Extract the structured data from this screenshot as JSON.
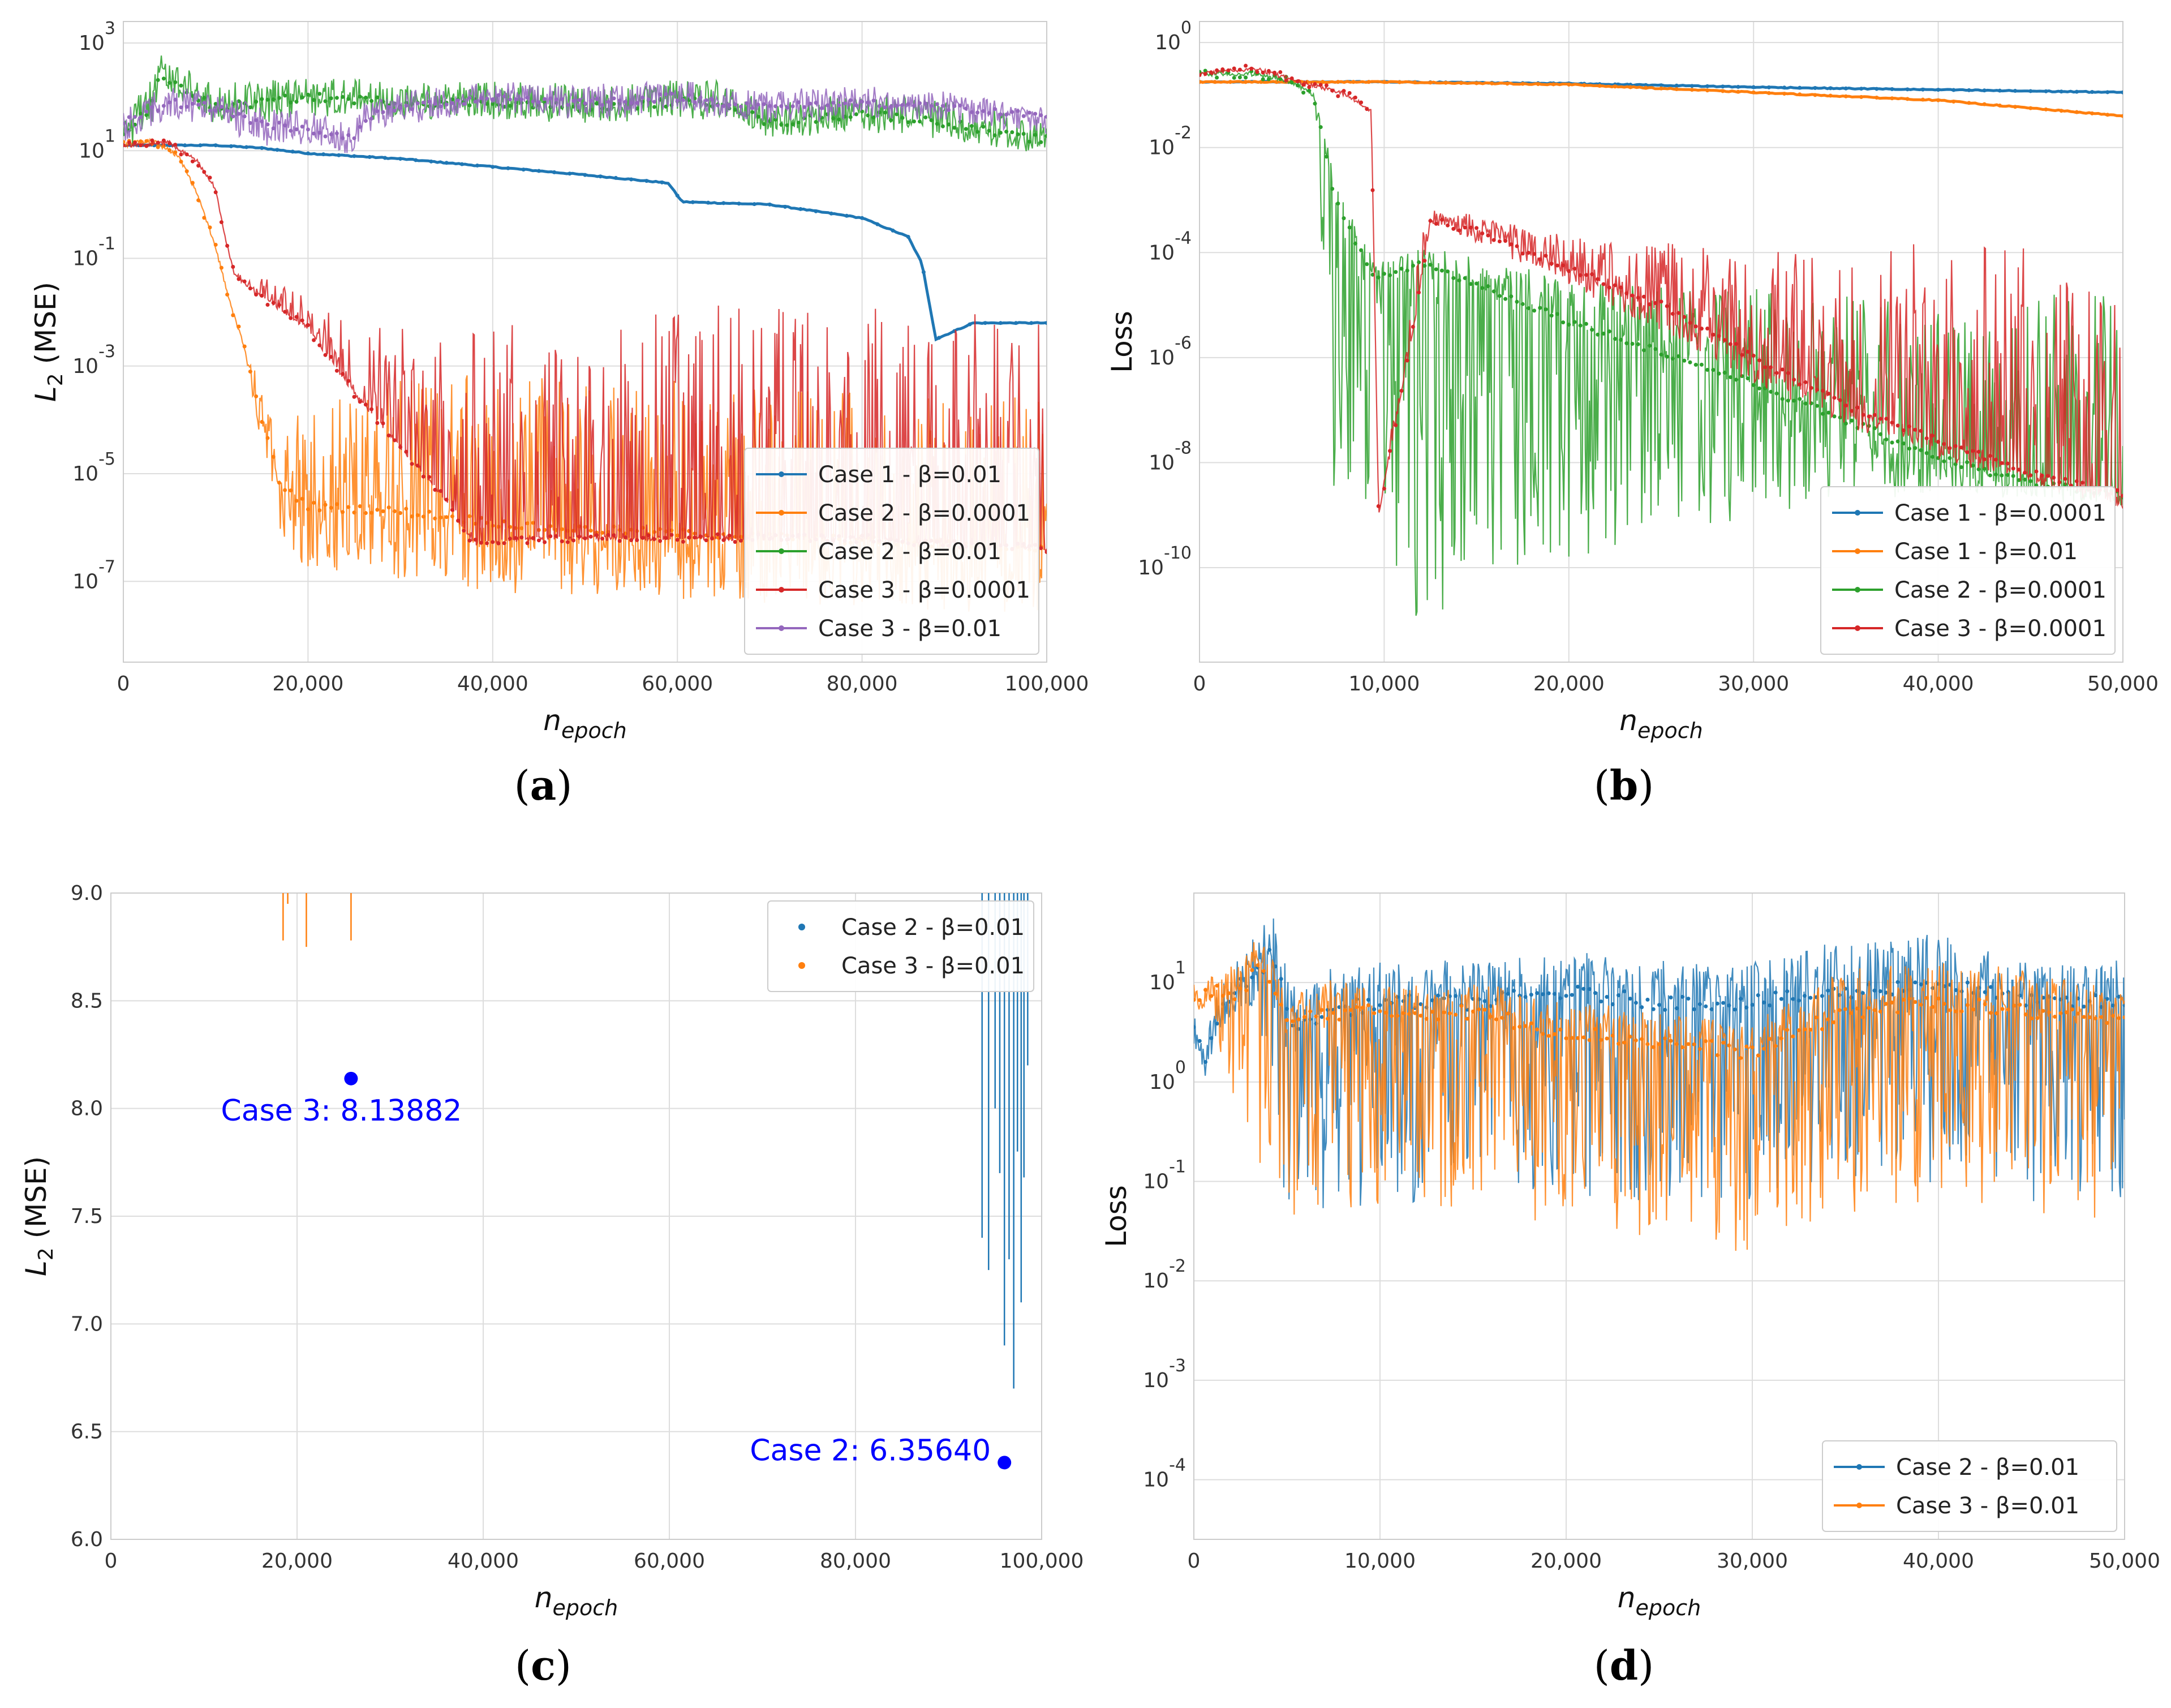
{
  "chart_data": [
    {
      "id": "a",
      "type": "line",
      "caption": "a",
      "xlabel": "n_epoch",
      "ylabel": "L2 (MSE)",
      "yscale": "log",
      "xlim": [
        0,
        100000
      ],
      "ylim_exp": [
        -8.5,
        3.4
      ],
      "xticks": [
        0,
        20000,
        40000,
        60000,
        80000,
        100000
      ],
      "xtick_labels": [
        "0",
        "20,000",
        "40,000",
        "60,000",
        "80,000",
        "100,000"
      ],
      "yticks_exp": [
        -7,
        -5,
        -3,
        -1,
        1,
        3
      ],
      "ytick_labels": [
        "-7",
        "-5",
        "-3",
        "-1",
        "1",
        "3"
      ],
      "legend_loc": "lower right",
      "series": [
        {
          "name": "Case 1 - β=0.01",
          "color": "#1f77b4",
          "style": "smooth",
          "x": [
            0,
            10000,
            15000,
            20000,
            30000,
            40000,
            50000,
            59000,
            60500,
            70000,
            80000,
            85000,
            86500,
            88000,
            92000,
            100000
          ],
          "yexp": [
            1.1,
            1.1,
            1.05,
            0.95,
            0.85,
            0.7,
            0.55,
            0.4,
            0.05,
            0.0,
            -0.25,
            -0.6,
            -1.1,
            -2.5,
            -2.2,
            -2.2
          ]
        },
        {
          "name": "Case 2 - β=0.0001",
          "color": "#ff7f0e",
          "style": "noisy",
          "x": [
            0,
            3000,
            6000,
            8000,
            10000,
            11500,
            13000,
            15000,
            17000,
            20000,
            30000,
            45000,
            60000,
            75000,
            100000
          ],
          "yexp": [
            1.1,
            1.2,
            0.9,
            0.2,
            -0.8,
            -1.8,
            -2.6,
            -4.0,
            -5.2,
            -5.6,
            -5.7,
            -6.0,
            -6.1,
            -6.2,
            -6.4
          ],
          "noise_top": [
            0,
            0,
            0,
            0,
            0,
            0,
            0,
            0.6,
            1.3,
            1.8,
            2.5,
            2.8,
            2.8,
            2.8,
            2.8
          ],
          "noise_bottom": [
            0,
            0,
            0,
            0,
            0,
            0,
            0,
            0.5,
            1.0,
            1.2,
            1.3,
            1.3,
            1.2,
            1.2,
            1.2
          ]
        },
        {
          "name": "Case 2 - β=0.01",
          "color": "#2ca02c",
          "style": "noisy",
          "x": [
            0,
            3000,
            4000,
            10000,
            20000,
            30000,
            40000,
            50000,
            60000,
            65000,
            70000,
            80000,
            90000,
            95000,
            100000
          ],
          "yexp": [
            1.3,
            1.8,
            2.4,
            1.8,
            2.0,
            1.9,
            1.9,
            1.8,
            1.9,
            1.9,
            1.5,
            1.7,
            1.5,
            1.3,
            1.2
          ],
          "noise_top": [
            0.4,
            0.5,
            0.4,
            0.4,
            0.4,
            0.4,
            0.4,
            0.4,
            0.4,
            0.4,
            0.4,
            0.4,
            0.4,
            0.4,
            0.3
          ],
          "noise_bottom": [
            0.4,
            0.3,
            0.3,
            0.3,
            0.4,
            0.3,
            0.3,
            0.3,
            0.3,
            0.3,
            0.3,
            0.3,
            0.3,
            0.3,
            0.2
          ]
        },
        {
          "name": "Case 3 - β=0.0001",
          "color": "#d62728",
          "style": "noisy",
          "x": [
            0,
            5000,
            8000,
            10000,
            11000,
            12000,
            14000,
            20000,
            25000,
            30000,
            35000,
            38000,
            45000,
            60000,
            80000,
            100000
          ],
          "yexp": [
            1.1,
            1.15,
            0.8,
            0.3,
            -0.6,
            -1.3,
            -1.6,
            -2.3,
            -3.5,
            -4.5,
            -5.5,
            -6.3,
            -6.2,
            -6.2,
            -6.2,
            -6.4
          ],
          "noise_top": [
            0,
            0,
            0,
            0,
            0,
            0.05,
            0.3,
            0.6,
            1.4,
            2.2,
            3.2,
            4.0,
            4.2,
            4.3,
            4.3,
            4.3
          ],
          "noise_bottom": [
            0,
            0,
            0,
            0,
            0,
            0,
            0,
            0,
            0,
            0,
            0,
            0,
            0,
            0,
            0,
            0
          ]
        },
        {
          "name": "Case 3 - β=0.01",
          "color": "#9467bd",
          "style": "noisy",
          "x": [
            0,
            5000,
            10000,
            15000,
            20000,
            25000,
            26000,
            30000,
            40000,
            50000,
            60000,
            70000,
            80000,
            90000,
            100000
          ],
          "yexp": [
            1.5,
            1.9,
            1.8,
            1.5,
            1.4,
            1.2,
            1.6,
            1.8,
            2.0,
            1.9,
            2.0,
            1.8,
            1.9,
            1.8,
            1.6
          ],
          "noise_top": [
            0.3,
            0.3,
            0.3,
            0.3,
            0.3,
            0.3,
            0.3,
            0.3,
            0.3,
            0.3,
            0.3,
            0.3,
            0.3,
            0.3,
            0.2
          ],
          "noise_bottom": [
            0.3,
            0.3,
            0.3,
            0.4,
            0.3,
            0.3,
            0.3,
            0.3,
            0.3,
            0.3,
            0.3,
            0.3,
            0.3,
            0.3,
            0.3
          ]
        }
      ]
    },
    {
      "id": "b",
      "type": "line",
      "caption": "b",
      "xlabel": "n_epoch",
      "ylabel": "Loss",
      "yscale": "log",
      "xlim": [
        0,
        50000
      ],
      "ylim_exp": [
        -11.8,
        0.4
      ],
      "xticks": [
        0,
        10000,
        20000,
        30000,
        40000,
        50000
      ],
      "xtick_labels": [
        "0",
        "10,000",
        "20,000",
        "30,000",
        "40,000",
        "50,000"
      ],
      "yticks_exp": [
        -10,
        -8,
        -6,
        -4,
        -2,
        0
      ],
      "ytick_labels": [
        "-10",
        "-8",
        "-6",
        "-4",
        "-2",
        "0"
      ],
      "legend_loc": "lower right",
      "series": [
        {
          "name": "Case 1 - β=0.0001",
          "color": "#1f77b4",
          "style": "smooth",
          "x": [
            0,
            10000,
            20000,
            30000,
            40000,
            50000
          ],
          "yexp": [
            -0.75,
            -0.75,
            -0.78,
            -0.85,
            -0.9,
            -0.95
          ]
        },
        {
          "name": "Case 1 - β=0.01",
          "color": "#ff7f0e",
          "style": "smooth",
          "x": [
            0,
            10000,
            20000,
            30000,
            40000,
            50000
          ],
          "yexp": [
            -0.75,
            -0.75,
            -0.8,
            -0.95,
            -1.1,
            -1.4
          ]
        },
        {
          "name": "Case 2 - β=0.0001",
          "color": "#2ca02c",
          "style": "noisy",
          "x": [
            0,
            3000,
            5000,
            6200,
            7300,
            9500,
            12000,
            15000,
            20000,
            25000,
            30000,
            35000,
            40000,
            45000,
            50000
          ],
          "yexp": [
            -0.6,
            -0.6,
            -0.75,
            -1.0,
            -3.0,
            -4.5,
            -4.2,
            -4.6,
            -5.3,
            -5.9,
            -6.5,
            -7.2,
            -7.9,
            -8.4,
            -8.6
          ],
          "noise_top": [
            0,
            0,
            0,
            0,
            0.5,
            0.3,
            0.3,
            0.5,
            0.8,
            1.2,
            1.8,
            2.4,
            3.0,
            3.6,
            3.8
          ],
          "noise_bottom": [
            0,
            0,
            0,
            0,
            6,
            5,
            7,
            5.5,
            4.5,
            3.5,
            2.5,
            1.5,
            0.7,
            0.3,
            0.2
          ]
        },
        {
          "name": "Case 3 - β=0.0001",
          "color": "#d62728",
          "style": "noisy",
          "x": [
            0,
            3000,
            6000,
            8000,
            9300,
            9700,
            11800,
            12500,
            15000,
            20000,
            25000,
            30000,
            35000,
            40000,
            45000,
            50000
          ],
          "yexp": [
            -0.6,
            -0.5,
            -0.8,
            -1.0,
            -1.3,
            -9.0,
            -5.0,
            -3.4,
            -3.6,
            -4.3,
            -5.0,
            -6.0,
            -6.9,
            -7.6,
            -8.2,
            -8.6
          ],
          "noise_top": [
            0,
            0,
            0,
            0,
            0,
            0,
            1,
            0.2,
            0.3,
            0.6,
            1.2,
            2.0,
            3.0,
            3.8,
            4.4,
            4.8
          ],
          "noise_bottom": [
            0,
            0,
            0,
            0,
            0,
            0,
            0,
            0,
            0.2,
            0.3,
            0.5,
            0.5,
            0.4,
            0.3,
            0.2,
            0.3
          ]
        }
      ]
    },
    {
      "id": "c",
      "type": "scatter",
      "caption": "c",
      "xlabel": "n_epoch",
      "ylabel": "L2 (MSE)",
      "yscale": "linear",
      "xlim": [
        0,
        100000
      ],
      "ylim": [
        6.0,
        9.0
      ],
      "xticks": [
        0,
        20000,
        40000,
        60000,
        80000,
        100000
      ],
      "xtick_labels": [
        "0",
        "20,000",
        "40,000",
        "60,000",
        "80,000",
        "100,000"
      ],
      "yticks": [
        6.0,
        6.5,
        7.0,
        7.5,
        8.0,
        8.5,
        9.0
      ],
      "ytick_labels": [
        "6.0",
        "6.5",
        "7.0",
        "7.5",
        "8.0",
        "8.5",
        "9.0"
      ],
      "legend_loc": "upper right",
      "series": [
        {
          "name": "Case 2 - β=0.01",
          "color": "#1f77b4"
        },
        {
          "name": "Case 3 - β=0.01",
          "color": "#ff7f0e"
        }
      ],
      "spikes": [
        {
          "color": "#ff7f0e",
          "x": [
            18500,
            19000,
            21000,
            25800
          ],
          "ylow": [
            8.78,
            8.95,
            8.75,
            8.78
          ]
        },
        {
          "color": "#1f77b4",
          "x": [
            93600,
            94300,
            95000,
            95500,
            96000,
            96500,
            97000,
            97400,
            97800,
            98100,
            98500
          ],
          "ylow": [
            7.4,
            7.25,
            8.0,
            7.7,
            6.9,
            7.3,
            6.7,
            7.8,
            7.1,
            7.68,
            8.2
          ]
        }
      ],
      "annotations": [
        {
          "text": "Case 3: 8.13882",
          "x": 25800,
          "y": 8.13882
        },
        {
          "text": "Case 2: 6.35640",
          "x": 96000,
          "y": 6.3564
        }
      ]
    },
    {
      "id": "d",
      "type": "line",
      "caption": "d",
      "xlabel": "n_epoch",
      "ylabel": "Loss",
      "yscale": "log",
      "xlim": [
        0,
        50000
      ],
      "ylim_exp": [
        -4.6,
        1.9
      ],
      "xticks": [
        0,
        10000,
        20000,
        30000,
        40000,
        50000
      ],
      "xtick_labels": [
        "0",
        "10,000",
        "20,000",
        "30,000",
        "40,000",
        "50,000"
      ],
      "yticks_exp": [
        -4,
        -3,
        -2,
        -1,
        0,
        1
      ],
      "ytick_labels": [
        "-4",
        "-3",
        "-2",
        "-1",
        "0",
        "1"
      ],
      "legend_loc": "lower right",
      "series": [
        {
          "name": "Case 2 - β=0.01",
          "color": "#1f77b4",
          "style": "noisy",
          "x": [
            0,
            500,
            1000,
            2000,
            3500,
            4200,
            5500,
            7000,
            10000,
            15000,
            20000,
            25000,
            30000,
            35000,
            40000,
            45000,
            50000
          ],
          "yexp": [
            0.6,
            0.2,
            0.5,
            0.9,
            1.1,
            1.3,
            0.5,
            0.7,
            0.8,
            0.8,
            0.9,
            0.8,
            0.8,
            0.9,
            1.0,
            0.8,
            0.8
          ],
          "noise_top": [
            0.3,
            0.3,
            0.3,
            0.4,
            0.4,
            0.4,
            0.4,
            0.4,
            0.4,
            0.4,
            0.4,
            0.4,
            0.4,
            0.5,
            0.5,
            0.4,
            0.4
          ],
          "noise_bottom": [
            0.2,
            0.2,
            0.2,
            0.2,
            0.3,
            2,
            2,
            2,
            2,
            2,
            2,
            2,
            2,
            2,
            2,
            2,
            2
          ]
        },
        {
          "name": "Case 3 - β=0.01",
          "color": "#ff7f0e",
          "style": "noisy",
          "x": [
            0,
            1000,
            2500,
            3500,
            5000,
            7000,
            10000,
            15000,
            20000,
            25000,
            30000,
            35000,
            40000,
            45000,
            50000
          ],
          "yexp": [
            0.8,
            0.9,
            0.9,
            1.2,
            0.6,
            0.7,
            0.7,
            0.7,
            0.5,
            0.4,
            0.3,
            0.7,
            0.8,
            0.7,
            0.6
          ],
          "noise_top": [
            0.2,
            0.2,
            0.3,
            0.3,
            0.3,
            0.3,
            0.3,
            0.3,
            0.3,
            0.3,
            0.3,
            0.4,
            0.4,
            0.4,
            0.3
          ],
          "noise_bottom": [
            0.1,
            0.1,
            2,
            2,
            2,
            2,
            2,
            2,
            2,
            2,
            2,
            2,
            2,
            2,
            2
          ]
        }
      ]
    }
  ]
}
